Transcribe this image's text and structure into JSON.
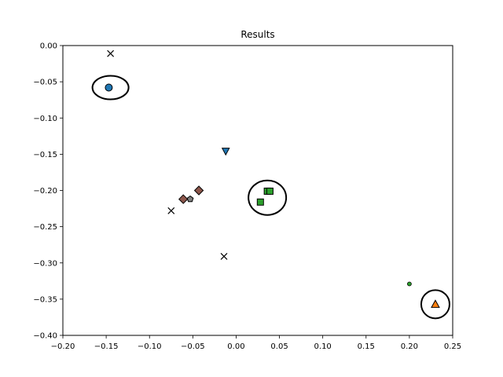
{
  "chart_data": {
    "type": "scatter",
    "title": "Results",
    "xlabel": "",
    "ylabel": "",
    "xlim": [
      -0.2,
      0.25
    ],
    "ylim": [
      -0.4,
      0.0
    ],
    "xticks": [
      "−0.20",
      "−0.15",
      "−0.10",
      "−0.05",
      "0.00",
      "0.05",
      "0.10",
      "0.15",
      "0.20",
      "0.25"
    ],
    "yticks": [
      "0.00",
      "−0.05",
      "−0.10",
      "−0.15",
      "−0.20",
      "−0.25",
      "−0.30",
      "−0.35",
      "−0.40"
    ],
    "xtick_values": [
      -0.2,
      -0.15,
      -0.1,
      -0.05,
      0.0,
      0.05,
      0.1,
      0.15,
      0.2,
      0.25
    ],
    "ytick_values": [
      0.0,
      -0.05,
      -0.1,
      -0.15,
      -0.2,
      -0.25,
      -0.3,
      -0.35,
      -0.4
    ],
    "grid": false,
    "points": [
      {
        "x": -0.145,
        "y": -0.011,
        "marker": "x",
        "color": "#000000"
      },
      {
        "x": -0.075,
        "y": -0.228,
        "marker": "x",
        "color": "#000000"
      },
      {
        "x": -0.014,
        "y": -0.291,
        "marker": "x",
        "color": "#000000"
      },
      {
        "x": -0.147,
        "y": -0.058,
        "marker": "circle",
        "color": "#1f77b4"
      },
      {
        "x": -0.012,
        "y": -0.146,
        "marker": "triangle-down",
        "color": "#1f77b4"
      },
      {
        "x": -0.043,
        "y": -0.2,
        "marker": "diamond",
        "color": "#8c564b"
      },
      {
        "x": -0.061,
        "y": -0.212,
        "marker": "diamond",
        "color": "#8c564b"
      },
      {
        "x": -0.053,
        "y": -0.212,
        "marker": "pentagon",
        "color": "#7f7f7f"
      },
      {
        "x": 0.036,
        "y": -0.201,
        "marker": "square",
        "color": "#2ca02c"
      },
      {
        "x": 0.039,
        "y": -0.201,
        "marker": "square",
        "color": "#2ca02c"
      },
      {
        "x": 0.028,
        "y": -0.216,
        "marker": "square",
        "color": "#2ca02c"
      },
      {
        "x": 0.2,
        "y": -0.329,
        "marker": "small-circle",
        "color": "#2ca02c"
      },
      {
        "x": 0.23,
        "y": -0.357,
        "marker": "triangle-up",
        "color": "#ff7f0e"
      }
    ],
    "circles": [
      {
        "cx": -0.145,
        "cy": -0.058
      },
      {
        "cx": 0.036,
        "cy": -0.21
      },
      {
        "cx": 0.23,
        "cy": -0.357
      }
    ]
  }
}
